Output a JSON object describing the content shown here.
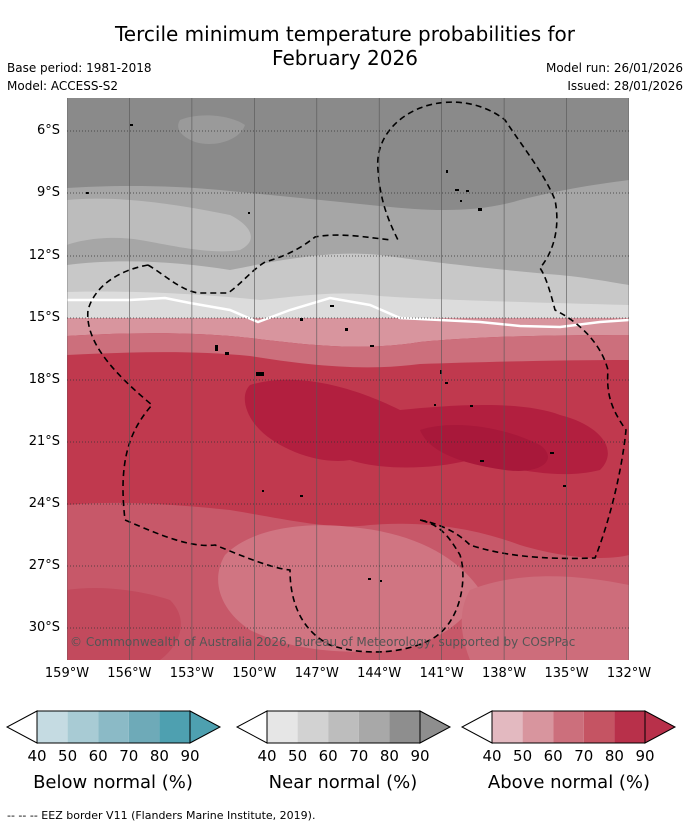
{
  "title": {
    "line1": "Tercile minimum temperature probabilities for",
    "line2": "February 2026"
  },
  "meta": {
    "base_period": "Base period: 1981-2018",
    "model": "Model: ACCESS-S2",
    "model_run": "Model run: 26/01/2026",
    "issued": "Issued: 28/01/2026"
  },
  "map": {
    "lat_ticks": [
      "6°S",
      "9°S",
      "12°S",
      "15°S",
      "18°S",
      "21°S",
      "24°S",
      "27°S",
      "30°S"
    ],
    "lon_ticks": [
      "159°W",
      "156°W",
      "153°W",
      "150°W",
      "147°W",
      "144°W",
      "141°W",
      "138°W",
      "135°W",
      "132°W"
    ],
    "copyright": "© Commonwealth of Australia 2026, Bureau of Meteorology, supported by COSPPac"
  },
  "legend": {
    "tick_labels": [
      "40",
      "50",
      "60",
      "70",
      "80",
      "90"
    ],
    "below": {
      "title": "Below normal (%)",
      "colors": [
        "#c5dbe2",
        "#a8cbd4",
        "#8bbac6",
        "#6eaab8",
        "#4ea0b0"
      ]
    },
    "near": {
      "title": "Near normal (%)",
      "colors": [
        "#e6e6e6",
        "#d2d2d2",
        "#bdbdbd",
        "#a8a8a8",
        "#8e8e8e"
      ]
    },
    "above": {
      "title": "Above normal (%)",
      "colors": [
        "#e3b9c0",
        "#d8959e",
        "#cc6f7c",
        "#c55463",
        "#b8304a"
      ]
    }
  },
  "footnote": "-- -- -- EEZ border V11 (Flanders Marine Institute, 2019)."
}
